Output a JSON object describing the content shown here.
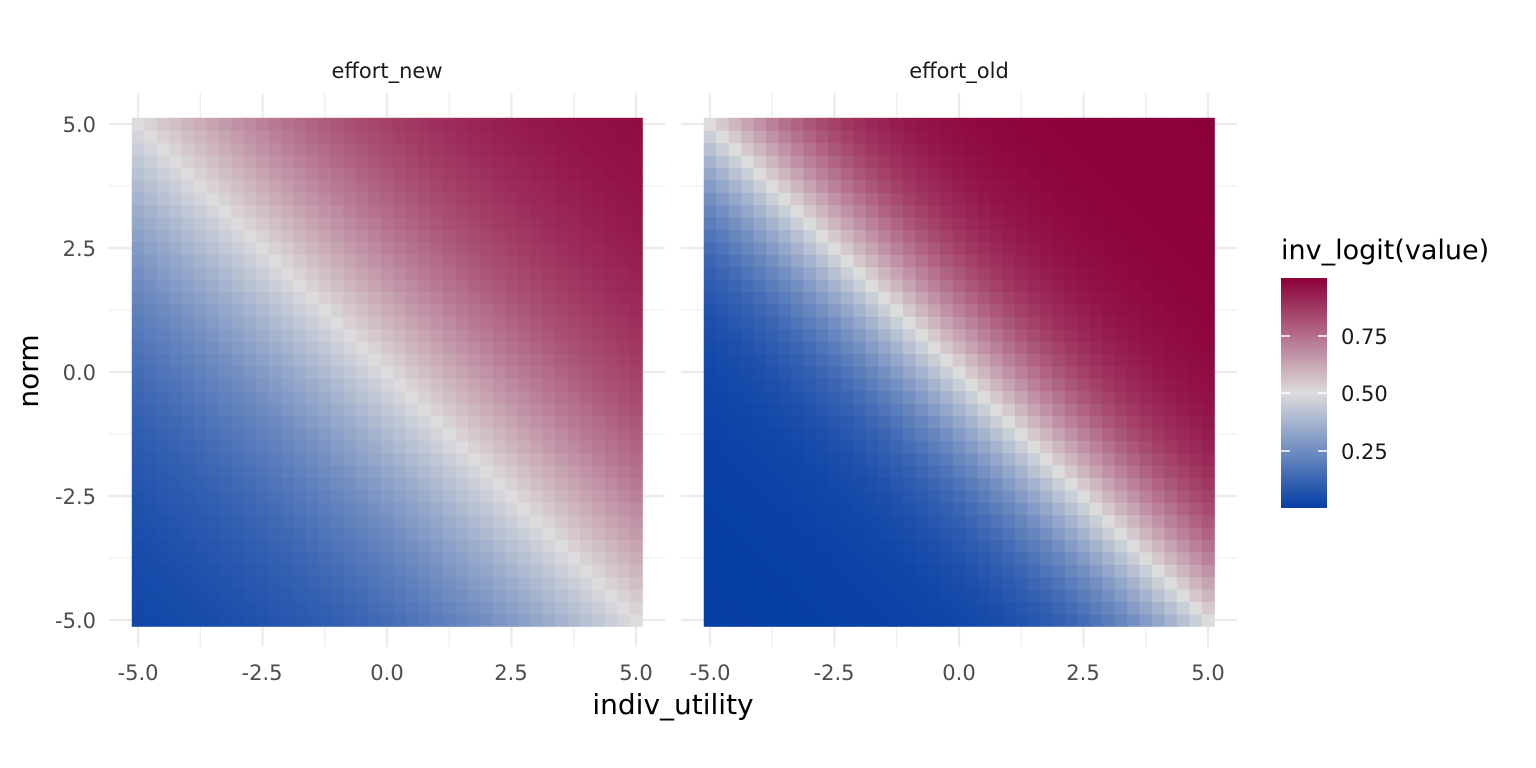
{
  "chart_data": {
    "type": "heatmap",
    "xlabel": "indiv_utility",
    "ylabel": "norm",
    "xlim": [
      -5.0,
      5.0
    ],
    "ylim": [
      -5.0,
      5.0
    ],
    "x_ticks": [
      "-5.0",
      "-2.5",
      "0.0",
      "2.5",
      "5.0"
    ],
    "y_ticks": [
      "-5.0",
      "-2.5",
      "0.0",
      "2.5",
      "5.0"
    ],
    "grid_resolution": 41,
    "value_formula": "inv_logit(coef * (indiv_utility + norm))",
    "panels": [
      {
        "label": "effort_new",
        "coef": 0.35
      },
      {
        "label": "effort_old",
        "coef": 0.7
      }
    ],
    "legend": {
      "title": "inv_logit(value)",
      "position": "right",
      "breaks": [
        "0.25",
        "0.50",
        "0.75"
      ],
      "low_color": "#053ea5",
      "mid_color": "#dcdcdc",
      "high_color": "#8b0038"
    },
    "grid": true
  }
}
